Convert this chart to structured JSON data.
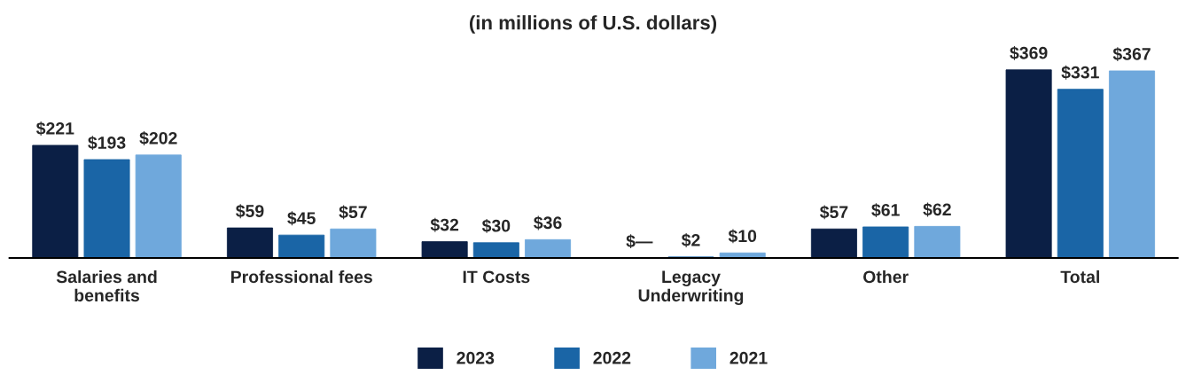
{
  "chart_data": {
    "type": "bar",
    "title": "(in millions of U.S. dollars)",
    "categories": [
      "Salaries and\nbenefits",
      "Professional fees",
      "IT Costs",
      "Legacy\nUnderwriting",
      "Other",
      "Total"
    ],
    "series": [
      {
        "name": "2023",
        "color": "#0b1f45",
        "values": [
          221,
          59,
          32,
          0,
          57,
          369
        ],
        "value_labels": [
          "$221",
          "$59",
          "$32",
          "$—",
          "$57",
          "$369"
        ]
      },
      {
        "name": "2022",
        "color": "#1a65a6",
        "values": [
          193,
          45,
          30,
          2,
          61,
          331
        ],
        "value_labels": [
          "$193",
          "$45",
          "$30",
          "$2",
          "$61",
          "$331"
        ]
      },
      {
        "name": "2021",
        "color": "#6fa8dc",
        "values": [
          202,
          57,
          36,
          10,
          62,
          367
        ],
        "value_labels": [
          "$202",
          "$57",
          "$36",
          "$10",
          "$62",
          "$367"
        ]
      }
    ],
    "grid": false,
    "legend": "bottom"
  }
}
